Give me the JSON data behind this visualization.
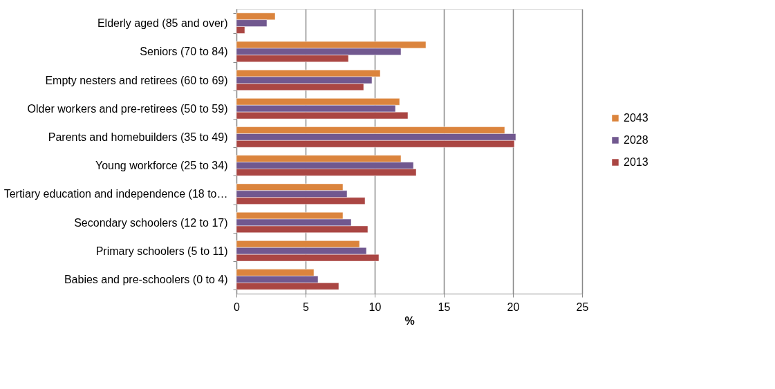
{
  "chart_data": {
    "type": "bar",
    "orientation": "horizontal",
    "xlabel": "%",
    "categories": [
      "Elderly aged (85 and over)",
      "Seniors (70 to 84)",
      "Empty nesters and retirees (60 to 69)",
      "Older workers and pre-retirees (50 to 59)",
      "Parents and homebuilders (35 to 49)",
      "Young workforce (25 to 34)",
      "Tertiary education and independence (18 to…",
      "Secondary schoolers (12 to 17)",
      "Primary schoolers (5 to 11)",
      "Babies and pre-schoolers (0 to 4)"
    ],
    "series": [
      {
        "name": "2043",
        "color": "#db843d",
        "values": [
          2.8,
          13.7,
          10.4,
          11.8,
          19.4,
          11.9,
          7.7,
          7.7,
          8.9,
          5.6
        ]
      },
      {
        "name": "2028",
        "color": "#71588f",
        "values": [
          2.2,
          11.9,
          9.8,
          11.5,
          20.2,
          12.8,
          8.0,
          8.3,
          9.4,
          5.9
        ]
      },
      {
        "name": "2013",
        "color": "#aa4643",
        "values": [
          0.6,
          8.1,
          9.2,
          12.4,
          20.1,
          13.0,
          9.3,
          9.5,
          10.3,
          7.4
        ]
      }
    ],
    "xlim": [
      0,
      25
    ],
    "xticks": [
      0,
      5,
      10,
      15,
      20,
      25
    ],
    "grid": "x",
    "legend": "right"
  }
}
